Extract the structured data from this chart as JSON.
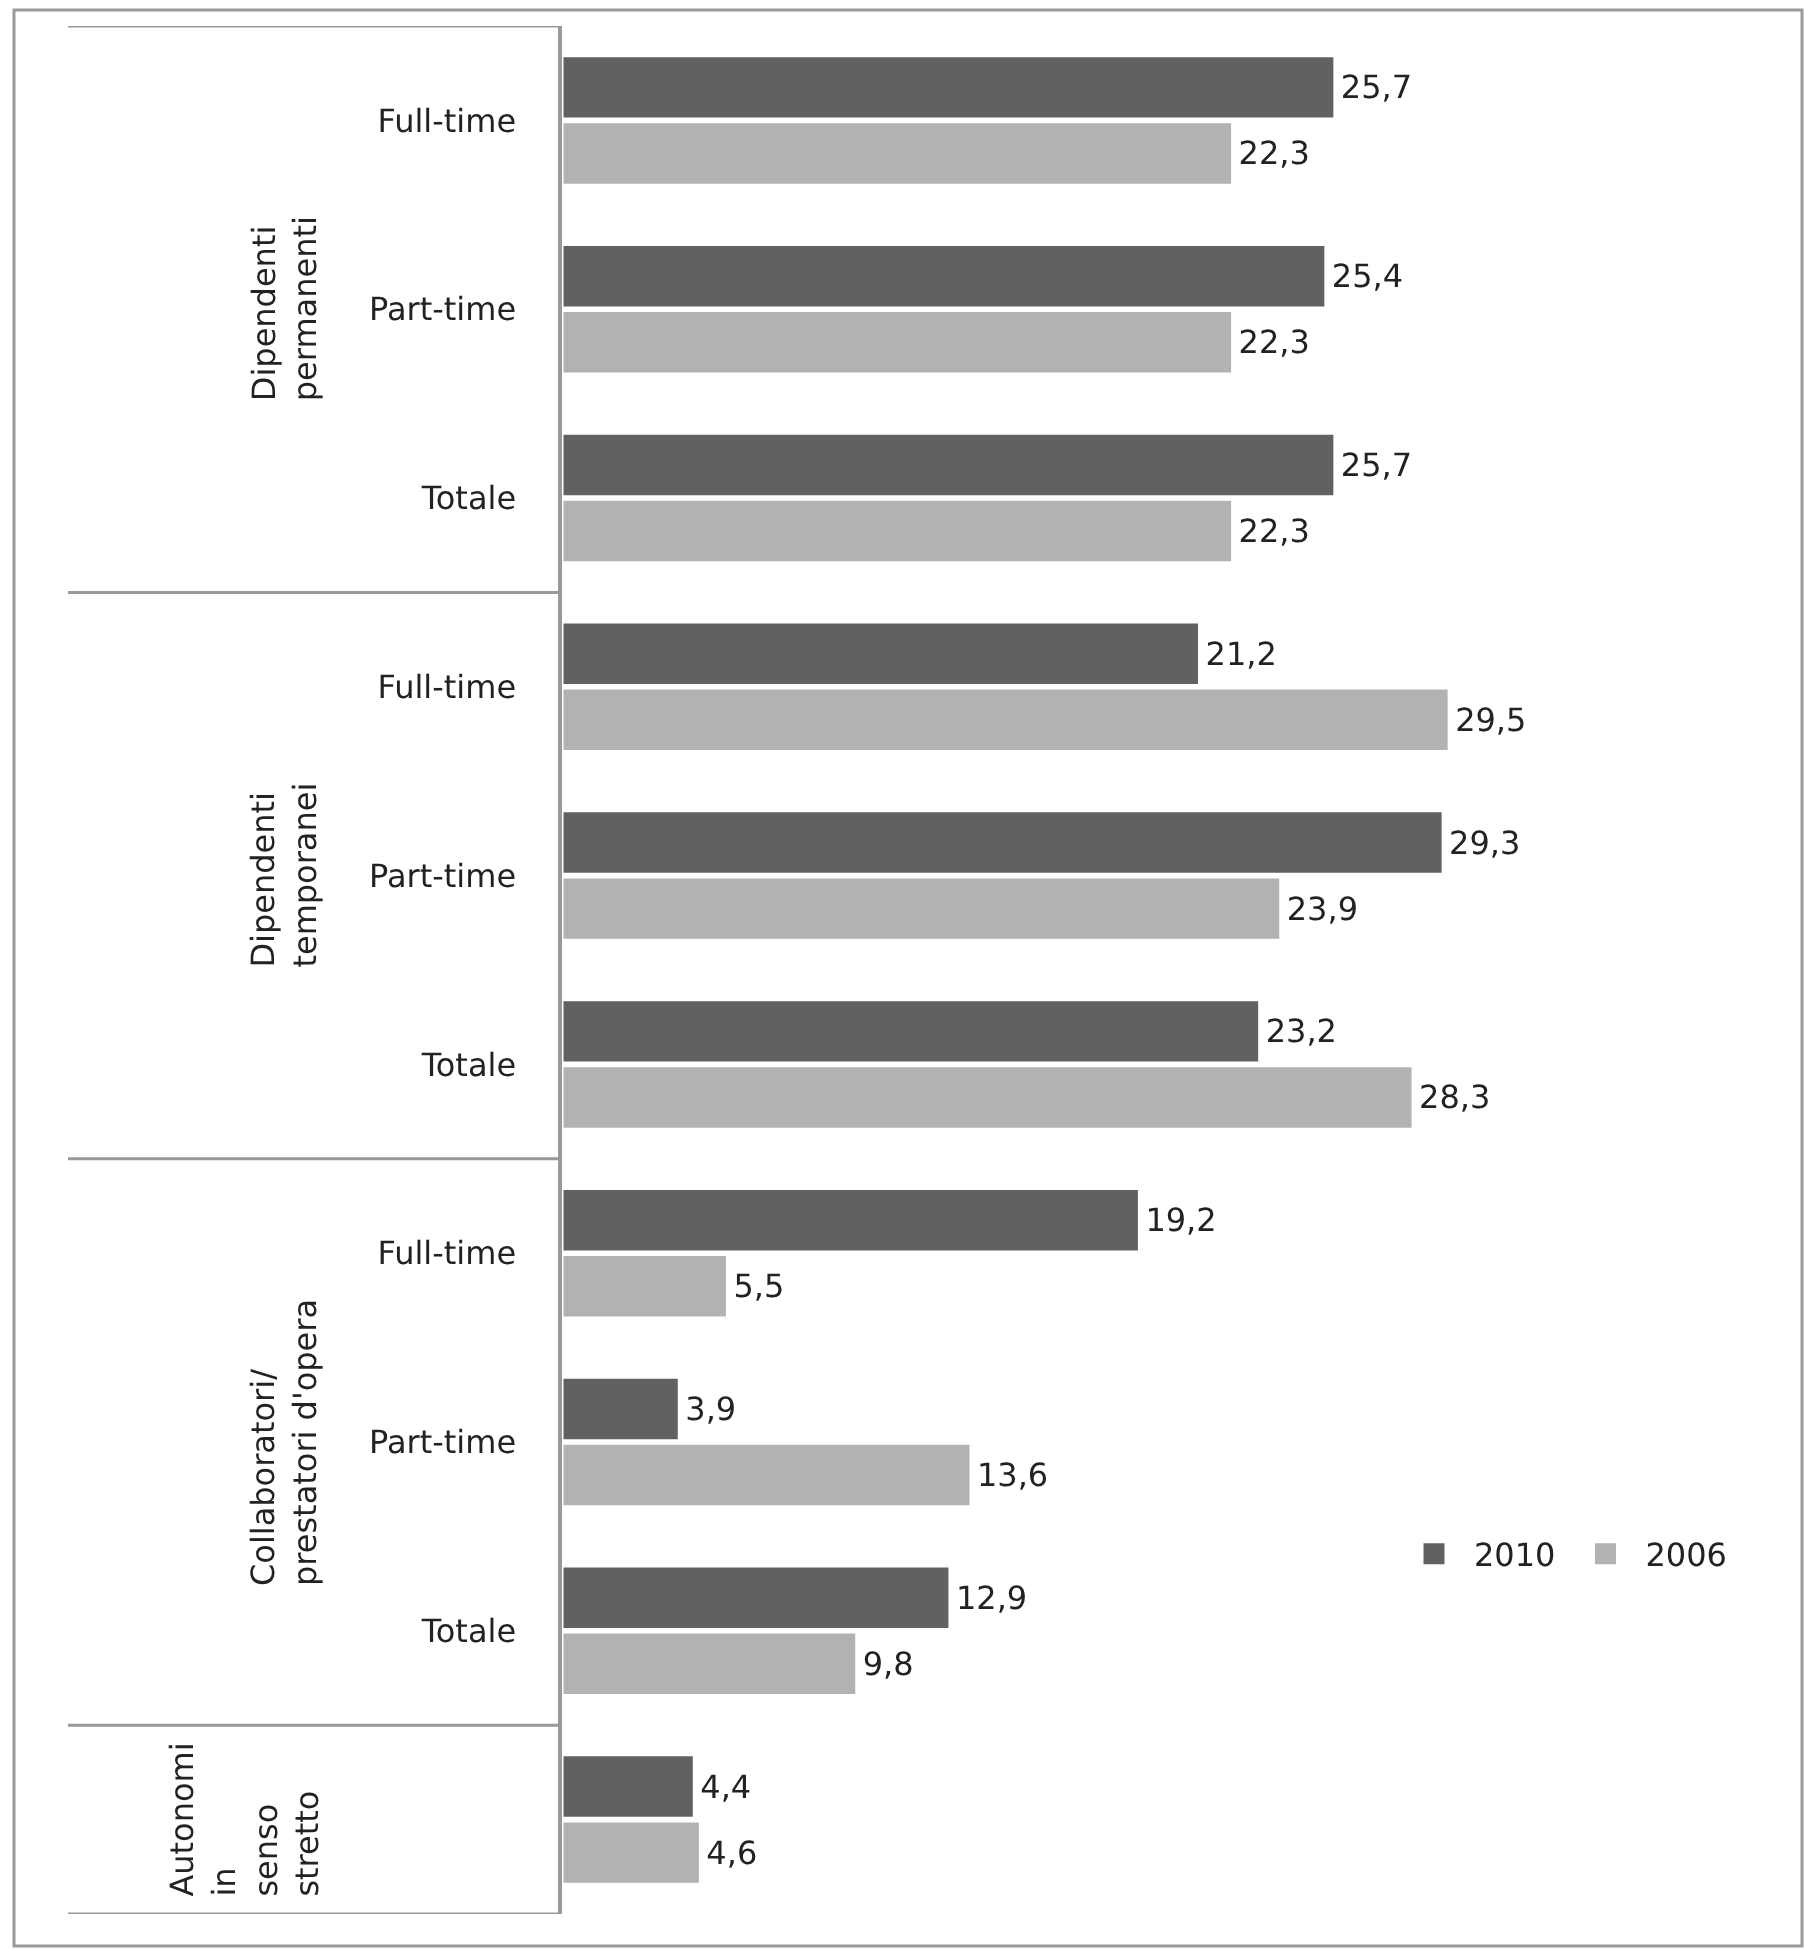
{
  "chart_data": {
    "type": "bar",
    "orientation": "horizontal",
    "categories": [
      "Full-time",
      "Part-time",
      "Totale",
      "Full-time",
      "Part-time",
      "Totale",
      "Full-time",
      "Part-time",
      "Totale",
      null
    ],
    "series": [
      {
        "name": "2010",
        "color": "#616161",
        "values": [
          25.7,
          25.4,
          25.7,
          21.2,
          29.3,
          23.2,
          19.2,
          3.9,
          12.9,
          4.4
        ],
        "value_labels": [
          "25,7",
          "25,4",
          "25,7",
          "21,2",
          "29,3",
          "23,2",
          "19,2",
          "3,9",
          "12,9",
          "4,4"
        ]
      },
      {
        "name": "2006",
        "color": "#b2b2b2",
        "values": [
          22.3,
          22.3,
          22.3,
          29.5,
          23.9,
          28.3,
          5.5,
          13.6,
          9.8,
          4.6
        ],
        "value_labels": [
          "22,3",
          "22,3",
          "22,3",
          "29,5",
          "23,9",
          "28,3",
          "5,5",
          "13,6",
          "9,8",
          "4,6"
        ]
      }
    ],
    "annotations": [
      "Dipendenti permanenti",
      "Dipendenti temporanei",
      "Collaboratori/ prestatori d'opera",
      "Autonomi in senso stretto"
    ],
    "legend": "right",
    "tick_labels": "y",
    "grid": false
  }
}
